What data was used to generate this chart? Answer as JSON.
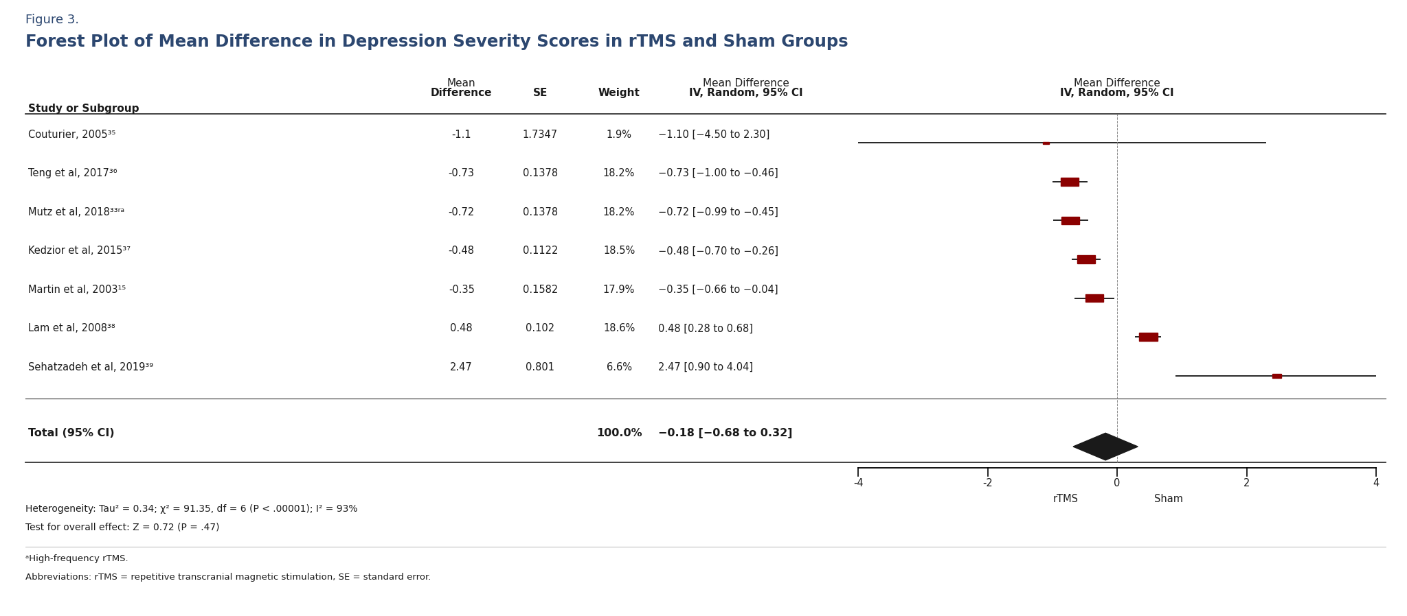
{
  "figure_label": "Figure 3.",
  "title": "Forest Plot of Mean Difference in Depression Severity Scores in rTMS and Sham Groups",
  "studies": [
    {
      "name": "Couturier, 2005³⁵",
      "mean_diff": -1.1,
      "se": 1.7347,
      "weight": "1.9%",
      "ci_str": "−1.10 [−4.50 to 2.30]",
      "ci_low": -4.5,
      "ci_high": 2.3
    },
    {
      "name": "Teng et al, 2017³⁶",
      "mean_diff": -0.73,
      "se": 0.1378,
      "weight": "18.2%",
      "ci_str": "−0.73 [−1.00 to −0.46]",
      "ci_low": -1.0,
      "ci_high": -0.46
    },
    {
      "name": "Mutz et al, 2018³³ʳᵃ",
      "mean_diff": -0.72,
      "se": 0.1378,
      "weight": "18.2%",
      "ci_str": "−0.72 [−0.99 to −0.45]",
      "ci_low": -0.99,
      "ci_high": -0.45
    },
    {
      "name": "Kedzior et al, 2015³⁷",
      "mean_diff": -0.48,
      "se": 0.1122,
      "weight": "18.5%",
      "ci_str": "−0.48 [−0.70 to −0.26]",
      "ci_low": -0.7,
      "ci_high": -0.26
    },
    {
      "name": "Martin et al, 2003¹⁵",
      "mean_diff": -0.35,
      "se": 0.1582,
      "weight": "17.9%",
      "ci_str": "−0.35 [−0.66 to −0.04]",
      "ci_low": -0.66,
      "ci_high": -0.04
    },
    {
      "name": "Lam et al, 2008³⁸",
      "mean_diff": 0.48,
      "se": 0.102,
      "weight": "18.6%",
      "ci_str": "0.48 [0.28 to 0.68]",
      "ci_low": 0.28,
      "ci_high": 0.68
    },
    {
      "name": "Sehatzadeh et al, 2019³⁹",
      "mean_diff": 2.47,
      "se": 0.801,
      "weight": "6.6%",
      "ci_str": "2.47 [0.90 to 4.04]",
      "ci_low": 0.9,
      "ci_high": 4.04
    }
  ],
  "total": {
    "weight": "100.0%",
    "ci_str": "−0.18 [−0.68 to 0.32]",
    "mean_diff": -0.18,
    "ci_low": -0.68,
    "ci_high": 0.32
  },
  "heterogeneity_text": "Heterogeneity: Tau² = 0.34; χ² = 91.35, df = 6 (P < .00001); I² = 93%",
  "overall_effect_text": "Test for overall effect: Z = 0.72 (P = .47)",
  "footnote1": "ᵃHigh-frequency rTMS.",
  "footnote2": "Abbreviations: rTMS = repetitive transcranial magnetic stimulation, SE = standard error.",
  "axis_min": -4,
  "axis_max": 4,
  "axis_ticks": [
    -4,
    -2,
    0,
    2,
    4
  ],
  "xlabel_left": "rTMS",
  "xlabel_right": "Sham",
  "study_col_header": "Study or Subgroup",
  "marker_color": "#8B0000",
  "diamond_color": "#1a1a1a",
  "line_color": "#000000",
  "background_color": "#ffffff",
  "header_color": "#2c4770",
  "text_color": "#1a1a1a"
}
